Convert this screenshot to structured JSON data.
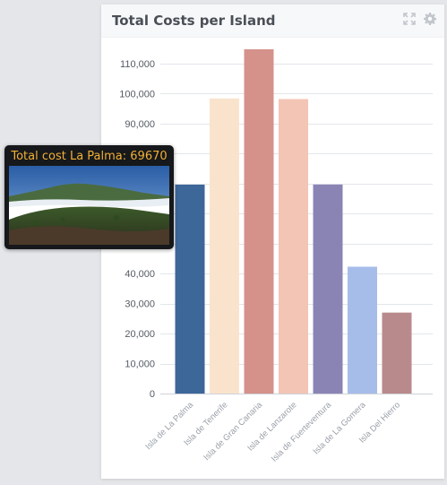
{
  "panel": {
    "title": "Total Costs per Island",
    "icons": [
      "expand-icon",
      "gear-icon"
    ]
  },
  "tooltip": {
    "text": "Total cost La Palma: 69670",
    "image": "mountain-landscape-photo"
  },
  "chart_data": {
    "type": "bar",
    "title": "Total Costs per Island",
    "xlabel": "",
    "ylabel": "",
    "ylim": [
      0,
      110000
    ],
    "yticks": [
      0,
      10000,
      20000,
      30000,
      40000,
      50000,
      60000,
      70000,
      80000,
      90000,
      100000,
      110000
    ],
    "ytick_labels": [
      "0",
      "10,000",
      "20,000",
      "30,000",
      "40,000",
      "",
      "",
      "",
      "",
      "90,000",
      "100,000",
      "110,000"
    ],
    "grid": true,
    "categories": [
      "Isla de La Palma",
      "Isla de Tenerife",
      "Isla de Gran Canaria",
      "Isla de Lanzarote",
      "Isla de Fuerteventura",
      "Isla de La Gomera",
      "Isla Del Hierro"
    ],
    "values": [
      69670,
      98400,
      114800,
      98200,
      69700,
      42300,
      27000
    ],
    "colors": [
      "#3d6699",
      "#fae3cd",
      "#d4928b",
      "#f3c5b5",
      "#8a84b5",
      "#a7bde9",
      "#b98a8c"
    ]
  }
}
